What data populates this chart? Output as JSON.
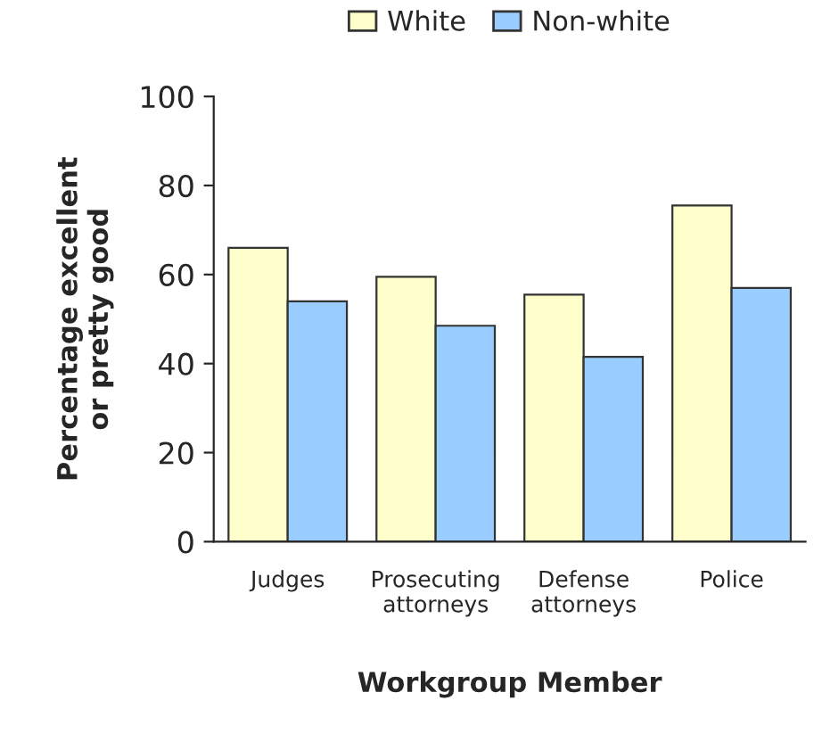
{
  "chart_data": {
    "type": "bar",
    "xlabel": "Workgroup Member",
    "ylabel": "Percentage excellent\nor pretty good",
    "categories": [
      "Judges",
      "Prosecuting\nattorneys",
      "Defense\nattorneys",
      "Police"
    ],
    "series": [
      {
        "name": "White",
        "color": "#ffffcc",
        "values": [
          66,
          59.5,
          55.5,
          75.5
        ]
      },
      {
        "name": "Non-white",
        "color": "#99ccff",
        "values": [
          54,
          48.5,
          41.5,
          57
        ]
      }
    ],
    "ylim": [
      0,
      100
    ],
    "yticks": [
      0,
      20,
      40,
      60,
      80,
      100
    ],
    "grid": false,
    "legend": "top"
  }
}
